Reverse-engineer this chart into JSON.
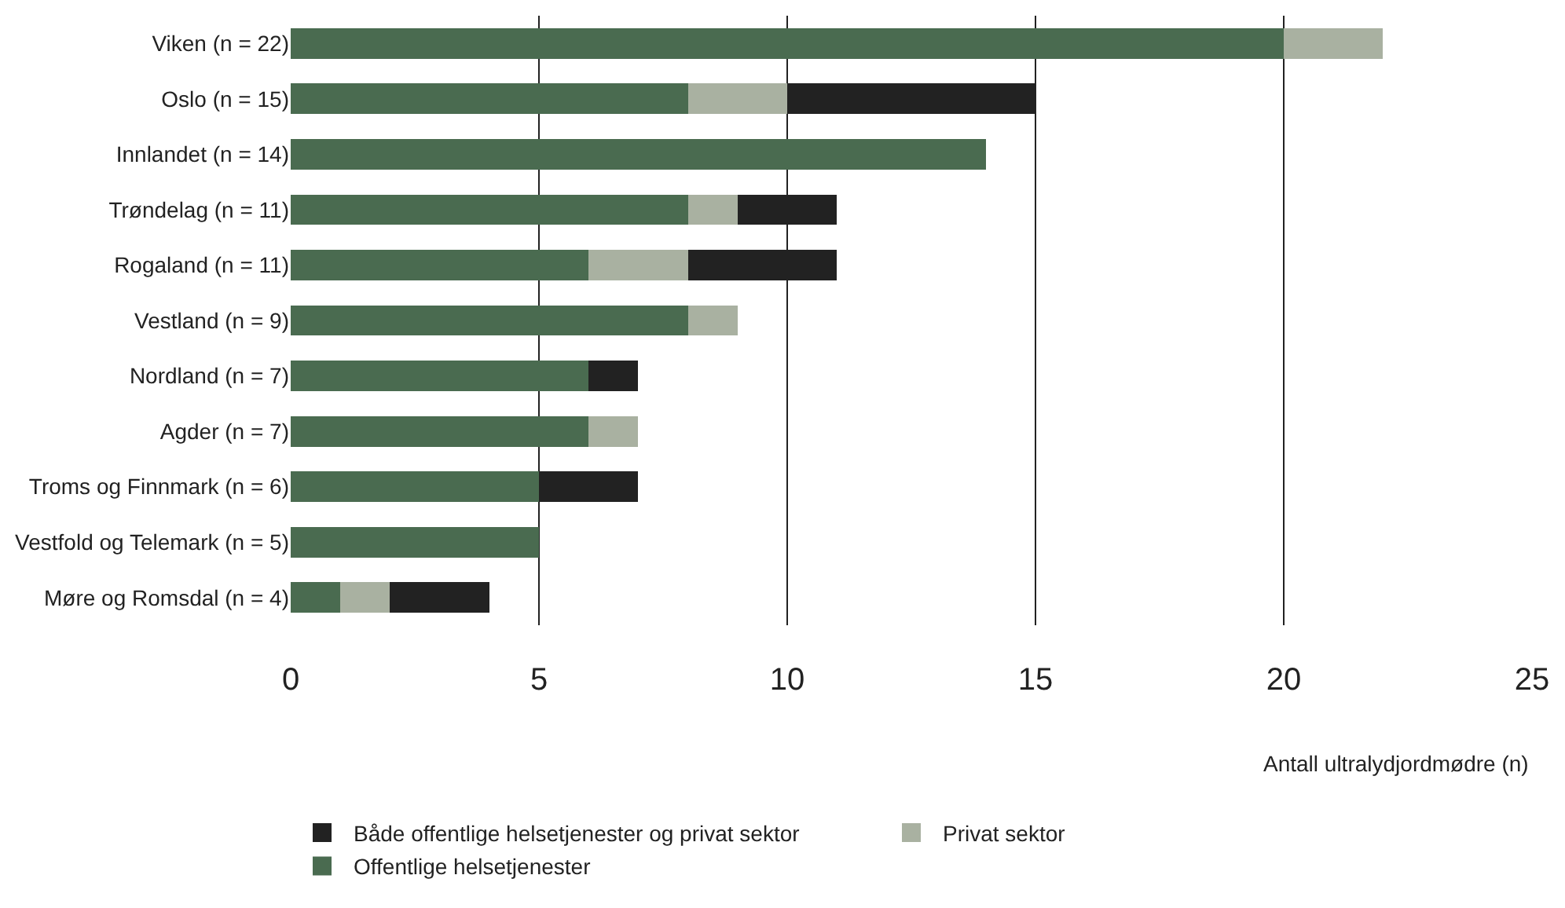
{
  "chart_data": {
    "type": "bar",
    "orientation": "horizontal",
    "stacked": true,
    "categories": [
      "Viken (n = 22)",
      "Oslo (n = 15)",
      "Innlandet (n = 14)",
      "Trøndelag (n = 11)",
      "Rogaland (n = 11)",
      "Vestland (n = 9)",
      "Nordland (n = 7)",
      "Agder (n = 7)",
      "Troms og Finnmark (n = 6)",
      "Vestfold og Telemark (n = 5)",
      "Møre og Romsdal (n = 4)"
    ],
    "series": [
      {
        "name": "Offentlige helsetjenester",
        "color": "#4a6b50",
        "values": [
          20,
          8,
          14,
          8,
          6,
          8,
          6,
          6,
          5,
          5,
          1
        ]
      },
      {
        "name": "Privat sektor",
        "color": "#a9b1a1",
        "values": [
          2,
          2,
          0,
          1,
          2,
          1,
          0,
          1,
          0,
          0,
          1
        ]
      },
      {
        "name": "Både offentlige helsetjenester og privat sektor",
        "color": "#222222",
        "values": [
          0,
          5,
          0,
          2,
          3,
          0,
          1,
          0,
          2,
          0,
          2
        ]
      }
    ],
    "xlabel": "Antall ultralydjordmødre (n)",
    "xlim": [
      0,
      25
    ],
    "xticks": [
      0,
      5,
      10,
      15,
      20,
      25
    ],
    "grid": "x",
    "legend": "bottom"
  }
}
